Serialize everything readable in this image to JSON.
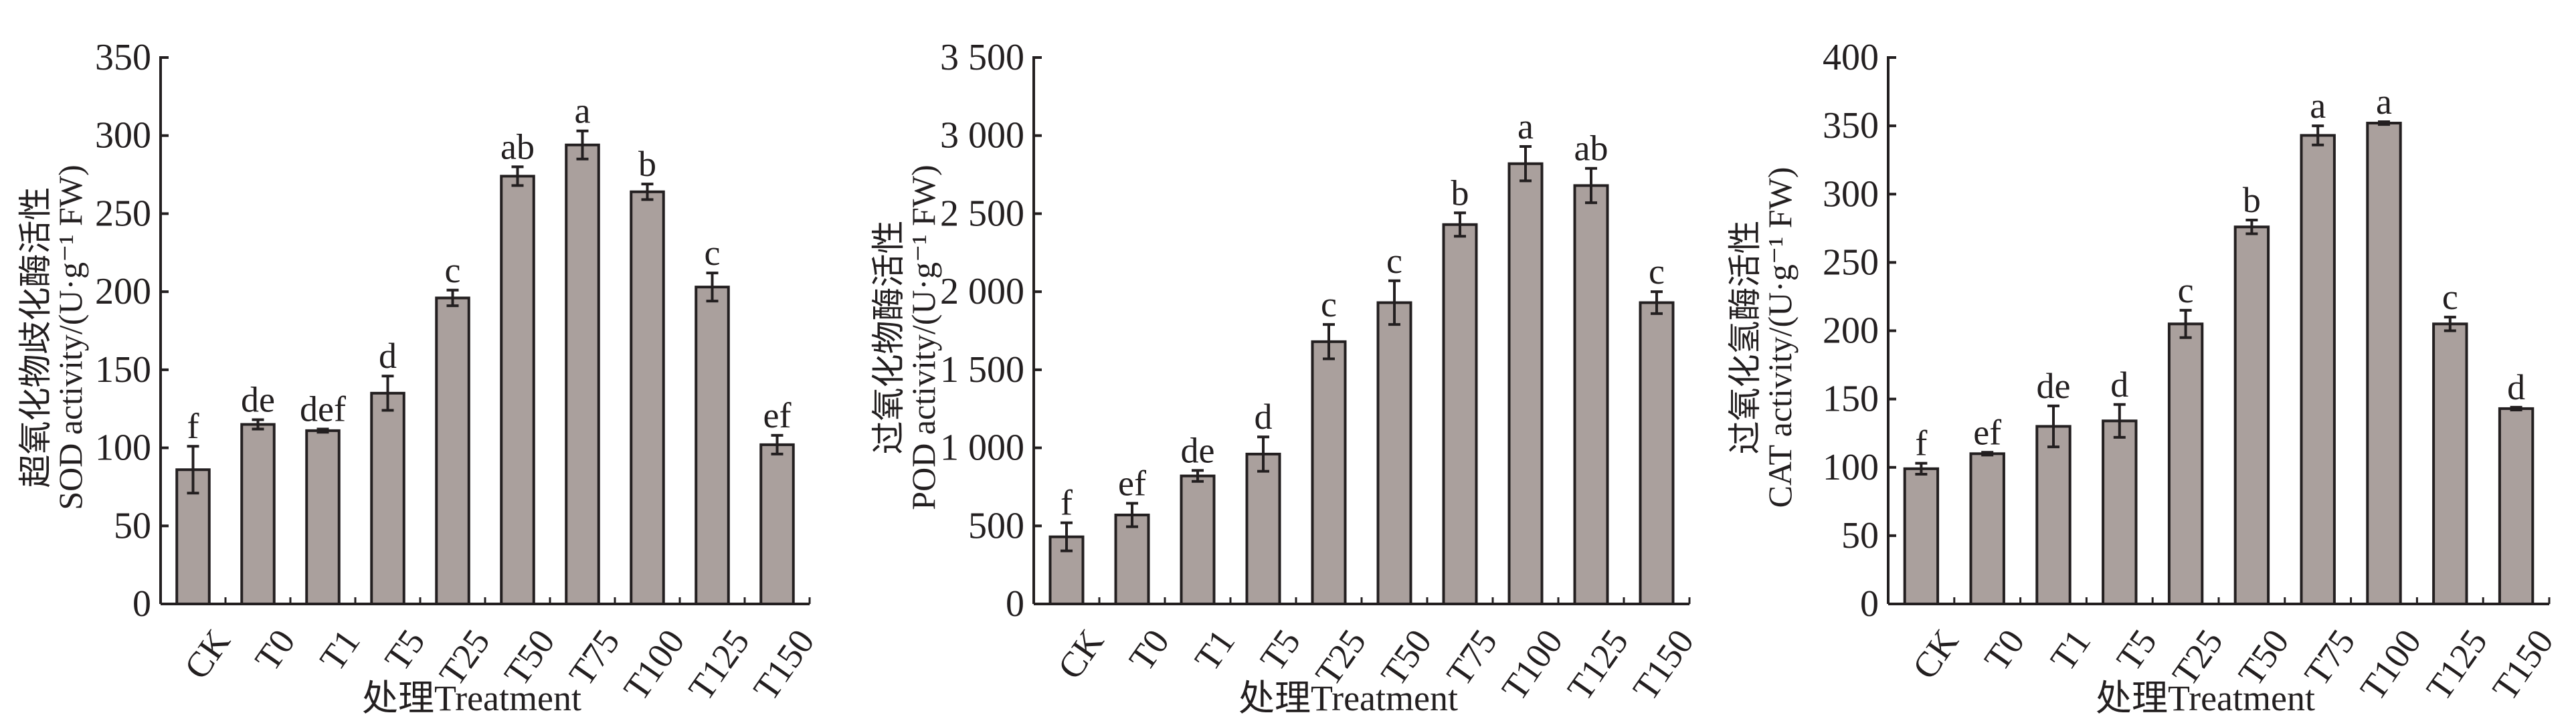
{
  "colors": {
    "bar": "#aaa09d",
    "stroke": "#231f20"
  },
  "chart_data": [
    {
      "type": "bar",
      "title": "",
      "ylabel_cn": "超氧化物歧化酶活性",
      "ylabel": "SOD activity/(U·g⁻¹ FW)",
      "xlabel": "处理Treatment",
      "categories": [
        "CK",
        "T0",
        "T1",
        "T5",
        "T25",
        "T50",
        "T75",
        "T100",
        "T125",
        "T150"
      ],
      "values": [
        86,
        115,
        111,
        135,
        196,
        274,
        294,
        264,
        203,
        102
      ],
      "errors": [
        15,
        3,
        1,
        11,
        5,
        6,
        9,
        5,
        9,
        6
      ],
      "letters": [
        "f",
        "de",
        "def",
        "d",
        "c",
        "ab",
        "a",
        "b",
        "c",
        "ef"
      ],
      "ylim": [
        0,
        350
      ],
      "yticks": [
        0,
        50,
        100,
        150,
        200,
        250,
        300,
        350
      ],
      "ytick_labels": [
        "0",
        "50",
        "100",
        "150",
        "200",
        "250",
        "300",
        "350"
      ]
    },
    {
      "type": "bar",
      "title": "",
      "ylabel_cn": "过氧化物酶活性",
      "ylabel": "POD activity/(U·g⁻¹ FW)",
      "xlabel": "处理Treatment",
      "categories": [
        "CK",
        "T0",
        "T1",
        "T5",
        "T25",
        "T50",
        "T75",
        "T100",
        "T125",
        "T150"
      ],
      "values": [
        430,
        570,
        820,
        960,
        1680,
        1930,
        2430,
        2820,
        2680,
        1930
      ],
      "errors": [
        90,
        75,
        35,
        110,
        110,
        140,
        75,
        110,
        110,
        70
      ],
      "letters": [
        "f",
        "ef",
        "de",
        "d",
        "c",
        "c",
        "b",
        "a",
        "ab",
        "c"
      ],
      "ylim": [
        0,
        3500
      ],
      "yticks": [
        0,
        500,
        1000,
        1500,
        2000,
        2500,
        3000,
        3500
      ],
      "ytick_labels": [
        "0",
        "500",
        "1 000",
        "1 500",
        "2 000",
        "2 500",
        "3 000",
        "3 500"
      ]
    },
    {
      "type": "bar",
      "title": "",
      "ylabel_cn": "过氧化氢酶活性",
      "ylabel": "CAT activity/(U·g⁻¹ FW)",
      "xlabel": "处理Treatment",
      "categories": [
        "CK",
        "T0",
        "T1",
        "T5",
        "T25",
        "T50",
        "T75",
        "T100",
        "T125",
        "T150"
      ],
      "values": [
        99,
        110,
        130,
        134,
        205,
        276,
        343,
        352,
        205,
        143
      ],
      "errors": [
        4,
        1,
        15,
        12,
        10,
        5,
        7,
        1,
        5,
        1
      ],
      "letters": [
        "f",
        "ef",
        "de",
        "d",
        "c",
        "b",
        "a",
        "a",
        "c",
        "d"
      ],
      "ylim": [
        0,
        400
      ],
      "yticks": [
        0,
        50,
        100,
        150,
        200,
        250,
        300,
        350,
        400
      ],
      "ytick_labels": [
        "0",
        "50",
        "100",
        "150",
        "200",
        "250",
        "300",
        "350",
        "400"
      ]
    }
  ]
}
